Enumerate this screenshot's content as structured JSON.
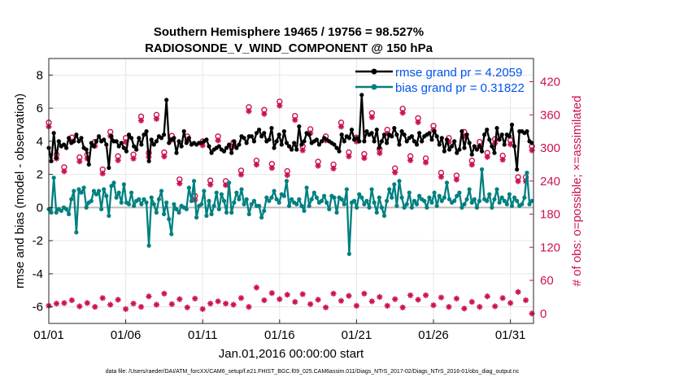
{
  "chart_data": {
    "type": "line",
    "title_line1": "Southern Hemisphere 19465 / 19756 = 98.527%",
    "title_line2": "RADIOSONDE_V_WIND_COMPONENT @ 150 hPa",
    "xlabel": "Jan.01,2016 00:00:00 start",
    "ylabel_left": "rmse and bias (model - observation)",
    "ylabel_right": "# of obs: o=possible; ×=assimilated",
    "footer": "data file: /Users/raeder/DAI/ATM_forcXX/CAM6_setup/f.e21.FHIST_BGC.f09_025.CAM6assim.011/Diags_NTrS_2017-02/Diags_NTrS_2016-01/obs_diag_output.nc",
    "x_ticks": [
      "01/01",
      "01/06",
      "01/11",
      "01/16",
      "01/21",
      "01/26",
      "01/31"
    ],
    "x_tick_days": [
      1,
      6,
      11,
      16,
      21,
      26,
      31
    ],
    "xlim_days": [
      1,
      32.5
    ],
    "y_left_ticks": [
      "-6",
      "-4",
      "-2",
      "0",
      "2",
      "4",
      "6",
      "8"
    ],
    "y_left_tick_values": [
      -6,
      -4,
      -2,
      0,
      2,
      4,
      6,
      8
    ],
    "ylim_left": [
      -7,
      9
    ],
    "y_right_ticks": [
      "0",
      "60",
      "120",
      "180",
      "240",
      "300",
      "360",
      "420"
    ],
    "y_right_tick_values": [
      0,
      60,
      120,
      180,
      240,
      300,
      360,
      420
    ],
    "ylim_right": [
      -18,
      462
    ],
    "legend": [
      {
        "label": "rmse grand pr = 4.2059",
        "color": "#000000"
      },
      {
        "label": "bias grand pr = 0.31822",
        "color": "#008080"
      }
    ],
    "colors": {
      "rmse": "#000000",
      "bias": "#008080",
      "obs": "#cc1155",
      "zero_line": "#bbbbbb",
      "legend_text": "#0055ee"
    },
    "series": [
      {
        "name": "rmse",
        "values": [
          3.6,
          2.8,
          4.5,
          3.0,
          4.0,
          3.7,
          3.8,
          3.6,
          4.2,
          3.9,
          4.0,
          4.4,
          4.0,
          4.2,
          3.6,
          3.5,
          2.6,
          3.9,
          3.7,
          4.0,
          4.3,
          4.0,
          4.1,
          3.8,
          2.4,
          4.3,
          4.0,
          4.0,
          3.7,
          3.9,
          3.6,
          3.4,
          4.4,
          4.2,
          3.7,
          3.5,
          4.2,
          3.8,
          4.4,
          4.6,
          2.8,
          4.1,
          3.8,
          4.0,
          4.3,
          4.2,
          4.4,
          6.5,
          3.9,
          4.1,
          4.2,
          3.3,
          4.0,
          3.7,
          4.6,
          3.9,
          4.2,
          3.8,
          3.9,
          3.8,
          3.9,
          3.9,
          4.0,
          4.1,
          3.7,
          3.3,
          3.5,
          3.6,
          3.7,
          3.5,
          3.4,
          3.6,
          3.8,
          3.3,
          4.0,
          3.6,
          3.8,
          4.3,
          4.2,
          3.9,
          4.3,
          4.3,
          4.0,
          4.5,
          4.7,
          4.3,
          4.5,
          4.0,
          4.1,
          4.8,
          3.6,
          4.0,
          4.4,
          3.8,
          4.6,
          3.9,
          3.7,
          3.5,
          3.9,
          3.5,
          4.9,
          3.8,
          4.0,
          4.5,
          4.4,
          3.9,
          4.0,
          4.1,
          3.8,
          4.0,
          4.2,
          4.1,
          4.0,
          3.9,
          3.8,
          3.6,
          3.4,
          4.4,
          4.0,
          4.3,
          4.2,
          4.7,
          4.1,
          4.2,
          4.0,
          6.8,
          4.0,
          4.6,
          4.4,
          4.5,
          4.0,
          4.7,
          3.6,
          4.0,
          4.4,
          3.9,
          4.4,
          4.3,
          4.8,
          4.4,
          3.8,
          4.6,
          4.4,
          4.0,
          4.2,
          4.3,
          4.0,
          3.8,
          4.5,
          4.0,
          4.3,
          4.4,
          4.5,
          4.1,
          4.6,
          4.3,
          3.8,
          4.2,
          3.4,
          4.1,
          3.5,
          3.7,
          4.0,
          3.3,
          3.5,
          4.6,
          3.6,
          4.4,
          3.9,
          3.2,
          3.7,
          3.5,
          3.7,
          3.4,
          4.4,
          4.7,
          4.1,
          3.7,
          3.3,
          4.8,
          4.1,
          4.4,
          3.8,
          4.4,
          4.3,
          5.0,
          3.7,
          2.3,
          4.6,
          4.6,
          4.5,
          4.6,
          4.0,
          3.9
        ],
        "x_start_day": 1.0,
        "x_step_days": 0.1627
      },
      {
        "name": "bias",
        "values": [
          -0.1,
          -0.3,
          1.8,
          -0.3,
          -0.1,
          -0.2,
          0.0,
          -0.1,
          -0.4,
          0.5,
          1.0,
          -1.5,
          1.1,
          0.9,
          1.2,
          0.0,
          0.3,
          0.4,
          1.0,
          0.8,
          1.0,
          -0.1,
          1.1,
          0.7,
          -0.5,
          1.3,
          1.5,
          0.6,
          0.9,
          0.3,
          1.4,
          0.3,
          0.2,
          0.9,
          0.1,
          0.4,
          0.5,
          0.2,
          0.5,
          0.3,
          -2.3,
          0.6,
          0.2,
          -0.3,
          0.5,
          1.0,
          -0.4,
          0.3,
          -0.7,
          -1.6,
          0.2,
          -0.1,
          -0.3,
          0.1,
          0.0,
          -0.1,
          1.2,
          0.4,
          1.6,
          -0.6,
          0.1,
          0.2,
          1.0,
          -0.5,
          0.4,
          -0.4,
          0.1,
          0.9,
          -0.1,
          0.8,
          0.4,
          -0.3,
          1.5,
          -0.3,
          0.3,
          0.9,
          0.5,
          1.1,
          0.2,
          0.5,
          -0.4,
          0.2,
          0.4,
          0.1,
          0.1,
          -0.6,
          -0.2,
          0.6,
          0.4,
          0.6,
          1.0,
          0.5,
          0.3,
          0.8,
          0.7,
          1.6,
          0.1,
          0.5,
          0.3,
          0.2,
          0.5,
          0.1,
          -0.2,
          1.2,
          0.1,
          0.5,
          0.9,
          0.6,
          0.3,
          0.4,
          0.7,
          0.3,
          -0.1,
          0.7,
          0.6,
          -0.3,
          0.6,
          0.5,
          0.2,
          1.1,
          -2.8,
          0.3,
          0.4,
          0.0,
          0.8,
          0.6,
          0.2,
          0.4,
          0.0,
          1.1,
          0.3,
          -0.3,
          0.6,
          0.0,
          -0.5,
          0.4,
          1.1,
          0.6,
          1.4,
          0.1,
          1.6,
          0.6,
          0.0,
          0.2,
          0.9,
          0.0,
          0.4,
          0.2,
          0.7,
          0.5,
          0.4,
          0.0,
          0.6,
          0.3,
          0.9,
          0.1,
          0.7,
          0.4,
          0.6,
          1.5,
          0.5,
          0.3,
          0.4,
          0.7,
          0.9,
          0.0,
          0.2,
          0.5,
          1.1,
          0.3,
          0.5,
          0.0,
          0.4,
          2.3,
          0.5,
          0.4,
          0.8,
          0.0,
          0.5,
          1.1,
          0.3,
          0.6,
          0.4,
          0.2,
          0.8,
          0.1,
          0.6,
          0.4,
          0.1,
          0.2,
          0.6,
          2.1,
          0.2,
          0.4
        ],
        "x_start_day": 1.0,
        "x_step_days": 0.1627
      }
    ],
    "obs_possible": [
      {
        "day": 1.0,
        "n": 343
      },
      {
        "day": 1.5,
        "n": 285
      },
      {
        "day": 2.0,
        "n": 262
      },
      {
        "day": 2.5,
        "n": 316
      },
      {
        "day": 3.0,
        "n": 280
      },
      {
        "day": 3.5,
        "n": 285
      },
      {
        "day": 4.0,
        "n": 308
      },
      {
        "day": 4.5,
        "n": 258
      },
      {
        "day": 5.0,
        "n": 326
      },
      {
        "day": 5.5,
        "n": 282
      },
      {
        "day": 6.0,
        "n": 315
      },
      {
        "day": 6.5,
        "n": 285
      },
      {
        "day": 7.0,
        "n": 354
      },
      {
        "day": 7.5,
        "n": 288
      },
      {
        "day": 8.0,
        "n": 357
      },
      {
        "day": 8.5,
        "n": 289
      },
      {
        "day": 9.0,
        "n": 319
      },
      {
        "day": 9.5,
        "n": 240
      },
      {
        "day": 10.0,
        "n": 318
      },
      {
        "day": 10.5,
        "n": 210
      },
      {
        "day": 11.0,
        "n": 309
      },
      {
        "day": 11.5,
        "n": 238
      },
      {
        "day": 12.0,
        "n": 318
      },
      {
        "day": 12.5,
        "n": 237
      },
      {
        "day": 13.0,
        "n": 307
      },
      {
        "day": 13.5,
        "n": 256
      },
      {
        "day": 14.0,
        "n": 371
      },
      {
        "day": 14.5,
        "n": 274
      },
      {
        "day": 15.0,
        "n": 366
      },
      {
        "day": 15.5,
        "n": 268
      },
      {
        "day": 16.0,
        "n": 381
      },
      {
        "day": 16.5,
        "n": 255
      },
      {
        "day": 17.0,
        "n": 355
      },
      {
        "day": 17.5,
        "n": 300
      },
      {
        "day": 18.0,
        "n": 331
      },
      {
        "day": 18.5,
        "n": 272
      },
      {
        "day": 19.0,
        "n": 318
      },
      {
        "day": 19.5,
        "n": 267
      },
      {
        "day": 20.0,
        "n": 343
      },
      {
        "day": 20.5,
        "n": 289
      },
      {
        "day": 21.0,
        "n": 316
      },
      {
        "day": 21.5,
        "n": 286
      },
      {
        "day": 22.0,
        "n": 360
      },
      {
        "day": 22.5,
        "n": 295
      },
      {
        "day": 23.0,
        "n": 330
      },
      {
        "day": 23.5,
        "n": 260
      },
      {
        "day": 24.0,
        "n": 368
      },
      {
        "day": 24.5,
        "n": 282
      },
      {
        "day": 25.0,
        "n": 351
      },
      {
        "day": 25.5,
        "n": 278
      },
      {
        "day": 26.0,
        "n": 337
      },
      {
        "day": 26.5,
        "n": 252
      },
      {
        "day": 27.0,
        "n": 315
      },
      {
        "day": 27.5,
        "n": 247
      },
      {
        "day": 28.0,
        "n": 326
      },
      {
        "day": 28.5,
        "n": 274
      },
      {
        "day": 29.0,
        "n": 308
      },
      {
        "day": 29.5,
        "n": 288
      },
      {
        "day": 30.0,
        "n": 313
      },
      {
        "day": 30.5,
        "n": 283
      },
      {
        "day": 31.0,
        "n": 311
      },
      {
        "day": 31.5,
        "n": 244
      },
      {
        "day": 32.0,
        "n": 244
      },
      {
        "day": 32.4,
        "n": 300
      }
    ],
    "obs_assimilated": [
      {
        "day": 1.0,
        "n": 14
      },
      {
        "day": 1.5,
        "n": 18
      },
      {
        "day": 2.0,
        "n": 19
      },
      {
        "day": 2.5,
        "n": 24
      },
      {
        "day": 3.0,
        "n": 13
      },
      {
        "day": 3.5,
        "n": 19
      },
      {
        "day": 4.0,
        "n": 12
      },
      {
        "day": 4.5,
        "n": 28
      },
      {
        "day": 5.0,
        "n": 16
      },
      {
        "day": 5.5,
        "n": 25
      },
      {
        "day": 6.0,
        "n": 8
      },
      {
        "day": 6.5,
        "n": 18
      },
      {
        "day": 7.0,
        "n": 12
      },
      {
        "day": 7.5,
        "n": 31
      },
      {
        "day": 8.0,
        "n": 16
      },
      {
        "day": 8.5,
        "n": 36
      },
      {
        "day": 9.0,
        "n": 17
      },
      {
        "day": 9.5,
        "n": 26
      },
      {
        "day": 10.0,
        "n": 11
      },
      {
        "day": 10.5,
        "n": 27
      },
      {
        "day": 11.0,
        "n": 8
      },
      {
        "day": 11.5,
        "n": 18
      },
      {
        "day": 12.0,
        "n": 22
      },
      {
        "day": 12.5,
        "n": 18
      },
      {
        "day": 13.0,
        "n": 16
      },
      {
        "day": 13.5,
        "n": 28
      },
      {
        "day": 14.0,
        "n": 12
      },
      {
        "day": 14.5,
        "n": 47
      },
      {
        "day": 15.0,
        "n": 24
      },
      {
        "day": 15.5,
        "n": 37
      },
      {
        "day": 16.0,
        "n": 26
      },
      {
        "day": 16.5,
        "n": 34
      },
      {
        "day": 17.0,
        "n": 21
      },
      {
        "day": 17.5,
        "n": 35
      },
      {
        "day": 18.0,
        "n": 17
      },
      {
        "day": 18.5,
        "n": 25
      },
      {
        "day": 19.0,
        "n": 11
      },
      {
        "day": 19.5,
        "n": 36
      },
      {
        "day": 20.0,
        "n": 23
      },
      {
        "day": 20.5,
        "n": 32
      },
      {
        "day": 21.0,
        "n": 14
      },
      {
        "day": 21.5,
        "n": 36
      },
      {
        "day": 22.0,
        "n": 22
      },
      {
        "day": 22.5,
        "n": 30
      },
      {
        "day": 23.0,
        "n": 14
      },
      {
        "day": 23.5,
        "n": 26
      },
      {
        "day": 24.0,
        "n": 11
      },
      {
        "day": 24.5,
        "n": 33
      },
      {
        "day": 25.0,
        "n": 25
      },
      {
        "day": 25.5,
        "n": 33
      },
      {
        "day": 26.0,
        "n": 15
      },
      {
        "day": 26.5,
        "n": 29
      },
      {
        "day": 27.0,
        "n": 12
      },
      {
        "day": 27.5,
        "n": 27
      },
      {
        "day": 28.0,
        "n": 9
      },
      {
        "day": 28.5,
        "n": 21
      },
      {
        "day": 29.0,
        "n": 12
      },
      {
        "day": 29.5,
        "n": 31
      },
      {
        "day": 30.0,
        "n": 13
      },
      {
        "day": 30.5,
        "n": 28
      },
      {
        "day": 31.0,
        "n": 19
      },
      {
        "day": 31.5,
        "n": 39
      },
      {
        "day": 32.0,
        "n": 24
      },
      {
        "day": 32.4,
        "n": 0
      }
    ]
  }
}
